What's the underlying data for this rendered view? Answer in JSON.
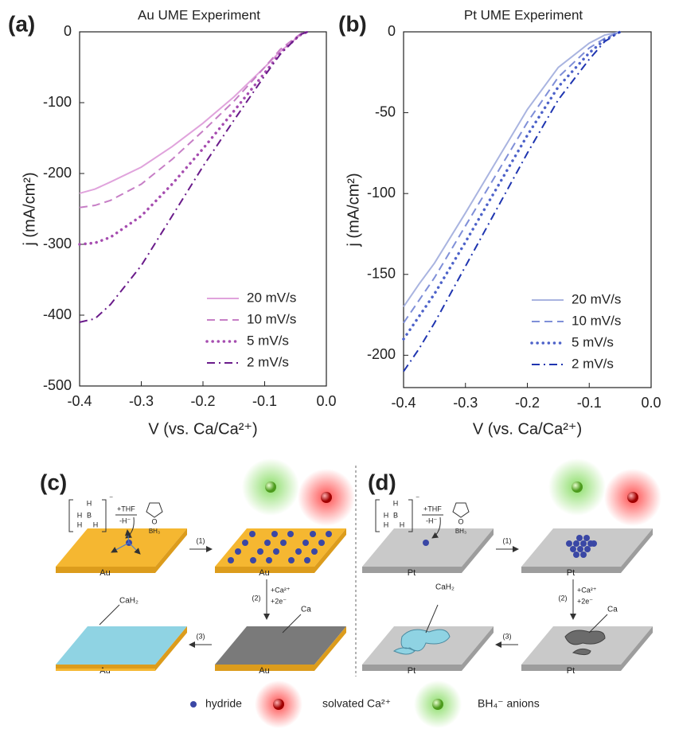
{
  "chart_data": [
    {
      "type": "line",
      "label": "(a)",
      "title": "Au UME Experiment",
      "x_label": "V (vs. Ca/Ca²⁺)",
      "y_label": "j (mA/cm²)",
      "x": [
        -0.4,
        -0.375,
        -0.35,
        -0.3,
        -0.25,
        -0.2,
        -0.15,
        -0.1,
        -0.075,
        -0.05,
        -0.04,
        -0.03
      ],
      "series": [
        {
          "name": "20 mV/s",
          "color": "#e0a3dc",
          "style": "solid",
          "values": [
            -228,
            -222,
            -212,
            -191,
            -162,
            -129,
            -92,
            -50,
            -28,
            -10,
            -3,
            0
          ]
        },
        {
          "name": "10 mV/s",
          "color": "#c77fc6",
          "style": "dashed",
          "values": [
            -248,
            -245,
            -238,
            -215,
            -180,
            -140,
            -98,
            -50,
            -25,
            -8,
            -2,
            0
          ]
        },
        {
          "name": "5 mV/s",
          "color": "#a64db0",
          "style": "dotted",
          "values": [
            -300,
            -298,
            -290,
            -260,
            -215,
            -165,
            -112,
            -58,
            -30,
            -10,
            -3,
            0
          ]
        },
        {
          "name": "2 mV/s",
          "color": "#6a1b8a",
          "style": "dashdot",
          "values": [
            -410,
            -405,
            -385,
            -330,
            -260,
            -190,
            -125,
            -62,
            -32,
            -10,
            -3,
            0
          ]
        }
      ],
      "xlim": [
        -0.4,
        0
      ],
      "xticks": [
        -0.4,
        -0.3,
        -0.2,
        -0.1,
        {
          "value": 0,
          "label": "0.0"
        }
      ],
      "ylim": [
        -500,
        0
      ],
      "yticks": [
        0,
        -100,
        -200,
        -300,
        -400,
        -500
      ],
      "legend": "lower right"
    },
    {
      "type": "line",
      "label": "(b)",
      "title": "Pt UME Experiment",
      "x_label": "V (vs. Ca/Ca²⁺)",
      "y_label": "j (mA/cm²)",
      "x": [
        -0.4,
        -0.375,
        -0.35,
        -0.3,
        -0.25,
        -0.2,
        -0.15,
        -0.1,
        -0.075,
        -0.05
      ],
      "series": [
        {
          "name": "20 mV/s",
          "color": "#a9b4e0",
          "style": "solid",
          "values": [
            -170,
            -156,
            -143,
            -112,
            -80,
            -48,
            -22,
            -7,
            -2,
            0
          ]
        },
        {
          "name": "10 mV/s",
          "color": "#7f8fd8",
          "style": "dashed",
          "values": [
            -180,
            -166,
            -152,
            -120,
            -88,
            -56,
            -28,
            -10,
            -4,
            0
          ]
        },
        {
          "name": "5 mV/s",
          "color": "#4d62c9",
          "style": "dotted",
          "values": [
            -190,
            -176,
            -162,
            -130,
            -97,
            -64,
            -34,
            -13,
            -5,
            0
          ]
        },
        {
          "name": "2 mV/s",
          "color": "#1f35b0",
          "style": "dashdot",
          "values": [
            -210,
            -196,
            -180,
            -145,
            -110,
            -75,
            -42,
            -17,
            -6,
            0
          ]
        }
      ],
      "xlim": [
        -0.4,
        0
      ],
      "xticks": [
        -0.4,
        -0.3,
        -0.2,
        -0.1,
        {
          "value": 0,
          "label": "0.0"
        }
      ],
      "ylim": [
        -220,
        0
      ],
      "yticks": [
        0,
        -50,
        -100,
        -150,
        -200
      ],
      "legend": "lower right"
    }
  ],
  "diagrams": [
    {
      "label": "(c)",
      "metal": "Au",
      "atoms": [
        "H",
        "H",
        "B",
        "H",
        "H"
      ],
      "charge": "⁻",
      "reagent": "+THF",
      "leaving": "-H⁻",
      "ring_atom": "O",
      "product": "BH₃",
      "steps": [
        "(1)",
        "(2)",
        "(3)"
      ],
      "step2_lines": [
        "+Ca²⁺",
        "+2e⁻"
      ],
      "deposit": "Ca",
      "film": "CaH₂"
    },
    {
      "label": "(d)",
      "metal": "Pt",
      "atoms": [
        "H",
        "H",
        "B",
        "H",
        "H"
      ],
      "charge": "⁻",
      "reagent": "+THF",
      "leaving": "-H⁻",
      "ring_atom": "O",
      "product": "BH₃",
      "steps": [
        "(1)",
        "(2)",
        "(3)"
      ],
      "step2_lines": [
        "+Ca²⁺",
        "+2e⁻"
      ],
      "deposit": "Ca",
      "film": "CaH₂"
    }
  ],
  "legend": [
    "hydride",
    "solvated Ca²⁺",
    "BH₄⁻ anions"
  ]
}
